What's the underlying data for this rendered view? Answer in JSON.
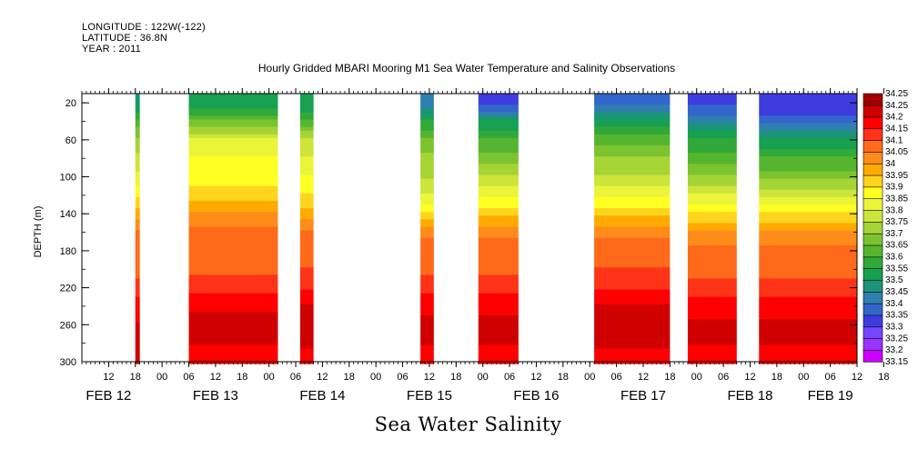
{
  "header": {
    "longitude": "LONGITUDE : 122W(-122)",
    "latitude": "LATITUDE : 36.8N",
    "year": "YEAR : 2011"
  },
  "footer": {
    "variable_label": "Sea Water Salinity"
  },
  "chart_data": {
    "type": "heatmap",
    "title": "Hourly Gridded MBARI Mooring M1 Sea Water Temperature and Salinity Observations",
    "xlabel": "",
    "ylabel": "DEPTH (m)",
    "y_axis": {
      "range": [
        300,
        10
      ],
      "ticks": [
        20,
        60,
        100,
        140,
        180,
        220,
        260,
        300
      ],
      "inverted": true
    },
    "x_axis": {
      "range": [
        "2011-02-12T06:00",
        "2011-02-19T12:00"
      ],
      "hour_ticks": [
        "12",
        "18",
        "00",
        "06",
        "12",
        "18",
        "00",
        "06",
        "12",
        "18",
        "00",
        "06",
        "12",
        "18",
        "00",
        "06",
        "12",
        "18",
        "00",
        "06",
        "12",
        "18",
        "00",
        "06",
        "12",
        "18",
        "00",
        "06",
        "12",
        "18"
      ],
      "hour_tick_times": [
        "2011-02-12T12:00",
        "2011-02-12T18:00",
        "2011-02-13T00:00",
        "2011-02-13T06:00",
        "2011-02-13T12:00",
        "2011-02-13T18:00",
        "2011-02-14T00:00",
        "2011-02-14T06:00",
        "2011-02-14T12:00",
        "2011-02-14T18:00",
        "2011-02-15T00:00",
        "2011-02-15T06:00",
        "2011-02-15T12:00",
        "2011-02-15T18:00",
        "2011-02-16T00:00",
        "2011-02-16T06:00",
        "2011-02-16T12:00",
        "2011-02-16T18:00",
        "2011-02-17T00:00",
        "2011-02-17T06:00",
        "2011-02-17T12:00",
        "2011-02-17T18:00",
        "2011-02-18T00:00",
        "2011-02-18T06:00",
        "2011-02-18T12:00",
        "2011-02-18T18:00",
        "2011-02-19T00:00",
        "2011-02-19T06:00",
        "2011-02-19T12:00",
        "2011-02-19T18:00"
      ],
      "date_labels": [
        {
          "label": "FEB 12",
          "time": "2011-02-12T12:00"
        },
        {
          "label": "FEB 13",
          "time": "2011-02-13T12:00"
        },
        {
          "label": "FEB 14",
          "time": "2011-02-14T12:00"
        },
        {
          "label": "FEB 15",
          "time": "2011-02-15T12:00"
        },
        {
          "label": "FEB 16",
          "time": "2011-02-16T12:00"
        },
        {
          "label": "FEB 17",
          "time": "2011-02-17T12:00"
        },
        {
          "label": "FEB 18",
          "time": "2011-02-18T12:00"
        },
        {
          "label": "FEB 19",
          "time": "2011-02-19T06:00"
        }
      ]
    },
    "colorbar": {
      "levels": [
        "33.15",
        "33.2",
        "33.25",
        "33.3",
        "33.35",
        "33.4",
        "33.45",
        "33.5",
        "33.55",
        "33.6",
        "33.65",
        "33.7",
        "33.75",
        "33.8",
        "33.85",
        "33.9",
        "33.95",
        "34",
        "34.05",
        "34.1",
        "34.15",
        "34.2",
        "34.25"
      ],
      "colors": [
        "#cc00ff",
        "#9933ff",
        "#7744ff",
        "#3d3ddf",
        "#3366cc",
        "#2e7fb0",
        "#1a9478",
        "#16a050",
        "#30a83a",
        "#55b530",
        "#7cc330",
        "#a5d435",
        "#cde43a",
        "#eaf53a",
        "#ffff22",
        "#ffd41e",
        "#ffaa00",
        "#ff8c1a",
        "#ff6a1a",
        "#ff3318",
        "#ff0000",
        "#d00000",
        "#a00000"
      ]
    },
    "data_segments": [
      {
        "start": "2011-02-12T18:00",
        "end": "2011-02-12T19:00",
        "profile": [
          [
            20,
            33.48
          ],
          [
            40,
            33.62
          ],
          [
            60,
            33.72
          ],
          [
            80,
            33.76
          ],
          [
            100,
            33.82
          ],
          [
            120,
            33.88
          ],
          [
            140,
            33.98
          ],
          [
            160,
            34.06
          ],
          [
            180,
            34.07
          ],
          [
            200,
            34.08
          ],
          [
            220,
            34.12
          ],
          [
            240,
            34.18
          ],
          [
            260,
            34.2
          ],
          [
            280,
            34.2
          ],
          [
            300,
            34.2
          ]
        ]
      },
      {
        "start": "2011-02-13T06:00",
        "end": "2011-02-14T02:00",
        "profile": [
          [
            20,
            33.5
          ],
          [
            40,
            33.66
          ],
          [
            60,
            33.8
          ],
          [
            80,
            33.85
          ],
          [
            100,
            33.88
          ],
          [
            120,
            33.92
          ],
          [
            140,
            34.0
          ],
          [
            160,
            34.07
          ],
          [
            180,
            34.08
          ],
          [
            200,
            34.09
          ],
          [
            220,
            34.13
          ],
          [
            240,
            34.19
          ],
          [
            260,
            34.22
          ],
          [
            280,
            34.2
          ],
          [
            300,
            34.17
          ]
        ]
      },
      {
        "start": "2011-02-14T07:00",
        "end": "2011-02-14T10:00",
        "profile": [
          [
            20,
            33.5
          ],
          [
            40,
            33.62
          ],
          [
            60,
            33.76
          ],
          [
            80,
            33.8
          ],
          [
            100,
            33.85
          ],
          [
            120,
            33.9
          ],
          [
            140,
            33.97
          ],
          [
            160,
            34.06
          ],
          [
            180,
            34.08
          ],
          [
            200,
            34.1
          ],
          [
            220,
            34.14
          ],
          [
            240,
            34.2
          ],
          [
            260,
            34.24
          ],
          [
            280,
            34.21
          ],
          [
            300,
            34.18
          ]
        ]
      },
      {
        "start": "2011-02-15T10:00",
        "end": "2011-02-15T13:00",
        "profile": [
          [
            20,
            33.42
          ],
          [
            40,
            33.55
          ],
          [
            60,
            33.66
          ],
          [
            80,
            33.72
          ],
          [
            100,
            33.74
          ],
          [
            120,
            33.8
          ],
          [
            140,
            33.9
          ],
          [
            160,
            34.04
          ],
          [
            180,
            34.07
          ],
          [
            200,
            34.09
          ],
          [
            220,
            34.13
          ],
          [
            240,
            34.19
          ],
          [
            260,
            34.21
          ],
          [
            280,
            34.2
          ],
          [
            300,
            34.17
          ]
        ]
      },
      {
        "start": "2011-02-15T23:00",
        "end": "2011-02-16T08:00",
        "profile": [
          [
            20,
            33.33
          ],
          [
            40,
            33.5
          ],
          [
            60,
            33.6
          ],
          [
            80,
            33.68
          ],
          [
            100,
            33.75
          ],
          [
            120,
            33.84
          ],
          [
            140,
            33.93
          ],
          [
            160,
            34.04
          ],
          [
            180,
            34.07
          ],
          [
            200,
            34.09
          ],
          [
            220,
            34.13
          ],
          [
            240,
            34.19
          ],
          [
            260,
            34.21
          ],
          [
            280,
            34.2
          ],
          [
            300,
            34.17
          ]
        ]
      },
      {
        "start": "2011-02-17T01:00",
        "end": "2011-02-17T18:00",
        "profile": [
          [
            20,
            33.38
          ],
          [
            40,
            33.52
          ],
          [
            60,
            33.62
          ],
          [
            80,
            33.7
          ],
          [
            100,
            33.76
          ],
          [
            120,
            33.84
          ],
          [
            140,
            33.93
          ],
          [
            160,
            34.04
          ],
          [
            180,
            34.07
          ],
          [
            200,
            34.1
          ],
          [
            220,
            34.14
          ],
          [
            240,
            34.2
          ],
          [
            260,
            34.23
          ],
          [
            280,
            34.21
          ],
          [
            300,
            34.18
          ]
        ]
      },
      {
        "start": "2011-02-17T22:00",
        "end": "2011-02-18T09:00",
        "profile": [
          [
            20,
            33.33
          ],
          [
            40,
            33.44
          ],
          [
            60,
            33.55
          ],
          [
            80,
            33.62
          ],
          [
            100,
            33.7
          ],
          [
            120,
            33.8
          ],
          [
            140,
            33.9
          ],
          [
            160,
            34.02
          ],
          [
            180,
            34.06
          ],
          [
            200,
            34.08
          ],
          [
            220,
            34.12
          ],
          [
            240,
            34.18
          ],
          [
            260,
            34.21
          ],
          [
            280,
            34.2
          ],
          [
            300,
            34.17
          ]
        ]
      },
      {
        "start": "2011-02-18T14:00",
        "end": "2011-02-19T12:00",
        "profile": [
          [
            20,
            33.3
          ],
          [
            40,
            33.38
          ],
          [
            60,
            33.5
          ],
          [
            80,
            33.6
          ],
          [
            100,
            33.68
          ],
          [
            120,
            33.78
          ],
          [
            140,
            33.9
          ],
          [
            160,
            34.02
          ],
          [
            180,
            34.06
          ],
          [
            200,
            34.08
          ],
          [
            220,
            34.12
          ],
          [
            240,
            34.18
          ],
          [
            260,
            34.21
          ],
          [
            280,
            34.2
          ],
          [
            300,
            34.17
          ]
        ]
      }
    ]
  }
}
